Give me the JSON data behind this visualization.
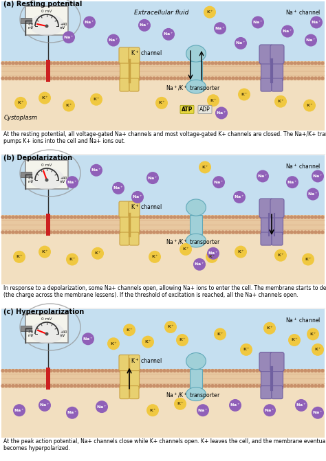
{
  "panel_titles": [
    "(a) Resting potential",
    "(b) Depolarization",
    "(c) Hyperpolarization"
  ],
  "bg_extracellular": "#c5dff0",
  "bg_cytoplasm": "#f2dfc0",
  "bg_membrane": "#e8c8a0",
  "membrane_dot_color": "#c8906a",
  "k_channel_color": "#e8d070",
  "k_channel_dark": "#c8a040",
  "na_channel_color": "#9888b8",
  "na_channel_dark": "#7060a0",
  "transporter_color": "#a0d0d8",
  "transporter_dark": "#60a8b8",
  "na_ion_color": "#9060b8",
  "k_ion_color": "#f0c840",
  "atp_color": "#e8d840",
  "adp_color": "#e8e8e0",
  "caption_a": "At the resting potential, all voltage-gated Na+ channels and most voltage-gated K+ channels are closed. The Na+/K+ transporter\npumps K+ ions into the cell and Na+ ions out.",
  "caption_b": "In response to a depolarization, some Na+ channels open, allowing Na+ ions to enter the cell. The membrane starts to depolarize\n(the charge across the membrane lessens). If the threshold of excitation is reached, all the Na+ channels open.",
  "caption_c": "At the peak action potential, Na+ channels close while K+ channels open. K+ leaves the cell, and the membrane eventually\nbecomes hyperpolarized.",
  "figsize": [
    4.74,
    6.71
  ],
  "dpi": 100
}
